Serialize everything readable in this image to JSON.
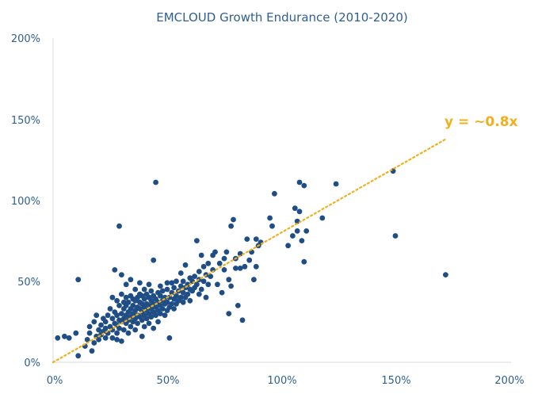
{
  "chart_data": {
    "type": "scatter",
    "title": "EMCLOUD Growth Endurance (2010-2020)",
    "xlabel": "",
    "ylabel": "",
    "xlim": [
      0,
      200
    ],
    "ylim": [
      0,
      200
    ],
    "x_ticks": [
      "0%",
      "50%",
      "100%",
      "150%",
      "200%"
    ],
    "y_ticks": [
      "0%",
      "50%",
      "100%",
      "150%",
      "200%"
    ],
    "grid": false,
    "colors": {
      "points": "#1f4e86",
      "trendline": "#f0b01d",
      "axis": "#d9d9d9",
      "text": "#2f5f8f"
    },
    "trendline": {
      "label": "y = ~0.8x",
      "slope": 0.8,
      "x_start": 0,
      "x_end": 172
    },
    "points": [
      [
        2,
        15
      ],
      [
        5,
        16
      ],
      [
        7,
        15
      ],
      [
        10,
        18
      ],
      [
        11,
        4
      ],
      [
        11,
        51
      ],
      [
        14,
        10
      ],
      [
        15,
        14
      ],
      [
        16,
        18
      ],
      [
        16,
        22
      ],
      [
        17,
        7
      ],
      [
        18,
        12
      ],
      [
        18,
        25
      ],
      [
        19,
        16
      ],
      [
        19,
        29
      ],
      [
        20,
        14
      ],
      [
        20,
        20
      ],
      [
        21,
        17
      ],
      [
        21,
        23
      ],
      [
        22,
        19
      ],
      [
        22,
        27
      ],
      [
        23,
        15
      ],
      [
        23,
        21
      ],
      [
        23,
        25
      ],
      [
        24,
        18
      ],
      [
        24,
        29
      ],
      [
        25,
        22
      ],
      [
        25,
        33
      ],
      [
        26,
        15
      ],
      [
        26,
        20
      ],
      [
        26,
        27
      ],
      [
        26,
        40
      ],
      [
        27,
        24
      ],
      [
        27,
        31
      ],
      [
        27,
        57
      ],
      [
        28,
        14
      ],
      [
        28,
        18
      ],
      [
        28,
        23
      ],
      [
        28,
        29
      ],
      [
        28,
        38
      ],
      [
        29,
        21
      ],
      [
        29,
        26
      ],
      [
        29,
        35
      ],
      [
        29,
        84
      ],
      [
        30,
        13
      ],
      [
        30,
        25
      ],
      [
        30,
        30
      ],
      [
        30,
        42
      ],
      [
        30,
        54
      ],
      [
        31,
        20
      ],
      [
        31,
        27
      ],
      [
        31,
        33
      ],
      [
        31,
        37
      ],
      [
        32,
        24
      ],
      [
        32,
        29
      ],
      [
        32,
        35
      ],
      [
        32,
        40
      ],
      [
        32,
        48
      ],
      [
        33,
        18
      ],
      [
        33,
        26
      ],
      [
        33,
        31
      ],
      [
        33,
        37
      ],
      [
        34,
        22
      ],
      [
        34,
        28
      ],
      [
        34,
        33
      ],
      [
        34,
        41
      ],
      [
        34,
        51
      ],
      [
        35,
        25
      ],
      [
        35,
        30
      ],
      [
        35,
        35
      ],
      [
        35,
        39
      ],
      [
        36,
        20
      ],
      [
        36,
        27
      ],
      [
        36,
        32
      ],
      [
        36,
        38
      ],
      [
        36,
        45
      ],
      [
        37,
        24
      ],
      [
        37,
        29
      ],
      [
        37,
        34
      ],
      [
        37,
        40
      ],
      [
        38,
        28
      ],
      [
        38,
        33
      ],
      [
        38,
        37
      ],
      [
        38,
        42
      ],
      [
        38,
        49
      ],
      [
        39,
        16
      ],
      [
        39,
        26
      ],
      [
        39,
        31
      ],
      [
        39,
        36
      ],
      [
        39,
        41
      ],
      [
        40,
        22
      ],
      [
        40,
        29
      ],
      [
        40,
        34
      ],
      [
        40,
        39
      ],
      [
        40,
        45
      ],
      [
        41,
        27
      ],
      [
        41,
        32
      ],
      [
        41,
        36
      ],
      [
        41,
        42
      ],
      [
        42,
        24
      ],
      [
        42,
        30
      ],
      [
        42,
        35
      ],
      [
        42,
        40
      ],
      [
        42,
        48
      ],
      [
        43,
        28
      ],
      [
        43,
        33
      ],
      [
        43,
        38
      ],
      [
        43,
        44
      ],
      [
        44,
        21
      ],
      [
        44,
        31
      ],
      [
        44,
        36
      ],
      [
        44,
        41
      ],
      [
        44,
        63
      ],
      [
        45,
        29
      ],
      [
        45,
        34
      ],
      [
        45,
        39
      ],
      [
        45,
        111
      ],
      [
        46,
        25
      ],
      [
        46,
        32
      ],
      [
        46,
        37
      ],
      [
        46,
        43
      ],
      [
        47,
        30
      ],
      [
        47,
        35
      ],
      [
        47,
        41
      ],
      [
        47,
        47
      ],
      [
        48,
        33
      ],
      [
        48,
        38
      ],
      [
        48,
        44
      ],
      [
        49,
        29
      ],
      [
        49,
        36
      ],
      [
        49,
        40
      ],
      [
        50,
        32
      ],
      [
        50,
        37
      ],
      [
        50,
        45
      ],
      [
        50,
        49
      ],
      [
        51,
        15
      ],
      [
        51,
        34
      ],
      [
        51,
        40
      ],
      [
        52,
        36
      ],
      [
        52,
        43
      ],
      [
        52,
        49
      ],
      [
        53,
        33
      ],
      [
        53,
        39
      ],
      [
        53,
        46
      ],
      [
        54,
        36
      ],
      [
        54,
        41
      ],
      [
        54,
        50
      ],
      [
        55,
        38
      ],
      [
        55,
        44
      ],
      [
        56,
        40
      ],
      [
        56,
        47
      ],
      [
        56,
        55
      ],
      [
        57,
        37
      ],
      [
        57,
        43
      ],
      [
        57,
        50
      ],
      [
        58,
        40
      ],
      [
        58,
        46
      ],
      [
        58,
        60
      ],
      [
        59,
        42
      ],
      [
        59,
        48
      ],
      [
        60,
        38
      ],
      [
        60,
        45
      ],
      [
        60,
        52
      ],
      [
        61,
        44
      ],
      [
        61,
        50
      ],
      [
        62,
        46
      ],
      [
        62,
        53
      ],
      [
        63,
        48
      ],
      [
        63,
        75
      ],
      [
        64,
        42
      ],
      [
        64,
        51
      ],
      [
        64,
        56
      ],
      [
        65,
        45
      ],
      [
        65,
        66
      ],
      [
        66,
        50
      ],
      [
        66,
        59
      ],
      [
        67,
        40
      ],
      [
        67,
        54
      ],
      [
        68,
        48
      ],
      [
        68,
        61
      ],
      [
        69,
        53
      ],
      [
        70,
        57
      ],
      [
        70,
        66
      ],
      [
        71,
        68
      ],
      [
        72,
        48
      ],
      [
        73,
        61
      ],
      [
        74,
        43
      ],
      [
        75,
        57
      ],
      [
        75,
        64
      ],
      [
        76,
        68
      ],
      [
        77,
        30
      ],
      [
        77,
        51
      ],
      [
        78,
        47
      ],
      [
        78,
        84
      ],
      [
        79,
        88
      ],
      [
        80,
        58
      ],
      [
        80,
        64
      ],
      [
        81,
        35
      ],
      [
        82,
        58
      ],
      [
        82,
        67
      ],
      [
        83,
        26
      ],
      [
        84,
        59
      ],
      [
        85,
        76
      ],
      [
        86,
        63
      ],
      [
        87,
        68
      ],
      [
        88,
        51
      ],
      [
        89,
        59
      ],
      [
        89,
        76
      ],
      [
        90,
        72
      ],
      [
        91,
        74
      ],
      [
        95,
        89
      ],
      [
        96,
        84
      ],
      [
        97,
        104
      ],
      [
        103,
        72
      ],
      [
        105,
        78
      ],
      [
        106,
        95
      ],
      [
        107,
        81
      ],
      [
        107,
        87
      ],
      [
        108,
        93
      ],
      [
        108,
        111
      ],
      [
        109,
        75
      ],
      [
        110,
        62
      ],
      [
        110,
        109
      ],
      [
        111,
        81
      ],
      [
        118,
        89
      ],
      [
        124,
        110
      ],
      [
        149,
        118
      ],
      [
        150,
        78
      ],
      [
        172,
        54
      ]
    ]
  }
}
